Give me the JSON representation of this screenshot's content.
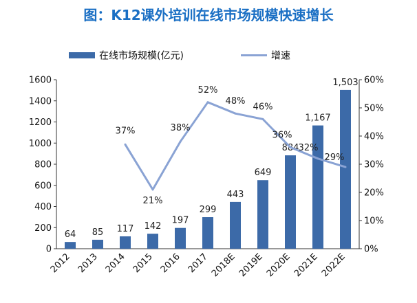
{
  "chart_data": {
    "type": "bar",
    "title": "图：K12课外培训在线市场规模快速增长",
    "categories": [
      "2012",
      "2013",
      "2014",
      "2015",
      "2016",
      "2017",
      "2018E",
      "2019E",
      "2020E",
      "2021E",
      "2022E"
    ],
    "series": [
      {
        "name": "在线市场规模(亿元)",
        "type": "bar",
        "axis": "left",
        "values": [
          64,
          85,
          117,
          142,
          197,
          299,
          443,
          649,
          884,
          1167,
          1503
        ],
        "labels": [
          "64",
          "85",
          "117",
          "142",
          "197",
          "299",
          "443",
          "649",
          "884",
          "1,167",
          "1,503"
        ]
      },
      {
        "name": "增速",
        "type": "line",
        "axis": "right",
        "values": [
          null,
          null,
          37,
          21,
          38,
          52,
          48,
          46,
          36,
          32,
          29
        ],
        "labels": [
          "",
          "",
          "37%",
          "21%",
          "38%",
          "52%",
          "48%",
          "46%",
          "36%",
          "32%",
          "29%"
        ]
      }
    ],
    "ylim_left": [
      0,
      1600
    ],
    "yticks_left": [
      "0",
      "200",
      "400",
      "600",
      "800",
      "1000",
      "1200",
      "1400",
      "1600"
    ],
    "ylim_right": [
      0,
      60
    ],
    "yticks_right": [
      "0%",
      "10%",
      "20%",
      "30%",
      "40%",
      "50%",
      "60%"
    ],
    "legend": "top",
    "grid": false,
    "colors": {
      "title": "#1a6fc4",
      "bar": "#3c6aa8",
      "line": "#8aa3d4",
      "axis": "#333333"
    }
  }
}
